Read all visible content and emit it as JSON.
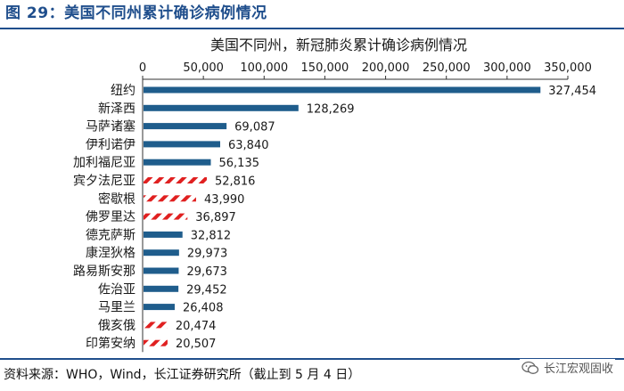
{
  "figure_title": "图 29：美国不同州累计确诊病例情况",
  "source_text": "资料来源：WHO，Wind，长江证券研究所（截止到 5 月 4 日）",
  "watermark_text": "长江宏观固收",
  "colors": {
    "bar_solid": "#1f5d8c",
    "bar_hatch": "#e02020",
    "brand": "#1f4e8c"
  },
  "chart_data": {
    "type": "bar",
    "orientation": "horizontal",
    "title": "美国不同州，新冠肺炎累计确诊病例情况",
    "xlabel": "",
    "ylabel": "",
    "xlim": [
      0,
      350000
    ],
    "xticks": [
      0,
      50000,
      100000,
      150000,
      200000,
      250000,
      300000,
      350000
    ],
    "xtick_labels": [
      "0",
      "50,000",
      "100,000",
      "150,000",
      "200,000",
      "250,000",
      "300,000",
      "350,000"
    ],
    "axis_position": "top",
    "grid": false,
    "legend": "none",
    "categories": [
      "纽约",
      "新泽西",
      "马萨诸塞",
      "伊利诺伊",
      "加利福尼亚",
      "宾夕法尼亚",
      "密歇根",
      "佛罗里达",
      "德克萨斯",
      "康涅狄格",
      "路易斯安那",
      "佐治亚",
      "马里兰",
      "俄亥俄",
      "印第安纳"
    ],
    "values": [
      327454,
      128269,
      69087,
      63840,
      56135,
      52816,
      43990,
      36897,
      32812,
      29973,
      29673,
      29452,
      26408,
      20474,
      20507
    ],
    "value_labels": [
      "327,454",
      "128,269",
      "69,087",
      "63,840",
      "56,135",
      "52,816",
      "43,990",
      "36,897",
      "32,812",
      "29,973",
      "29,673",
      "29,452",
      "26,408",
      "20,474",
      "20,507"
    ],
    "hatched": [
      false,
      false,
      false,
      false,
      false,
      true,
      true,
      true,
      false,
      false,
      false,
      false,
      false,
      true,
      true
    ]
  }
}
